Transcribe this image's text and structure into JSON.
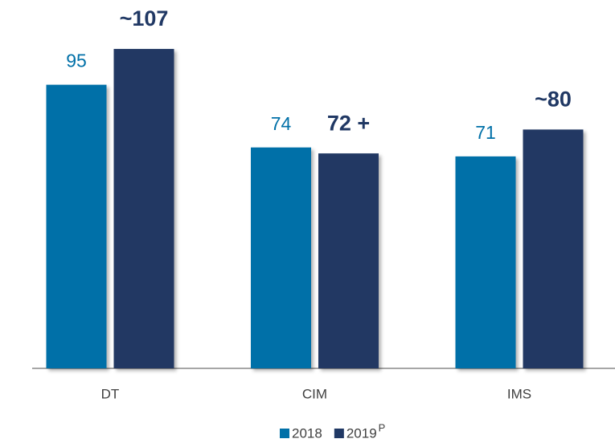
{
  "chart_data": {
    "type": "bar",
    "categories": [
      "DT",
      "CIM",
      "IMS"
    ],
    "series": [
      {
        "name": "2018",
        "color": "#0070a8",
        "values": [
          95,
          74,
          71
        ]
      },
      {
        "name": "2019",
        "superscript": "P",
        "color": "#203864",
        "values": [
          107,
          72,
          80
        ],
        "value_labels": [
          "~107",
          "72 +",
          "~80"
        ]
      }
    ]
  }
}
